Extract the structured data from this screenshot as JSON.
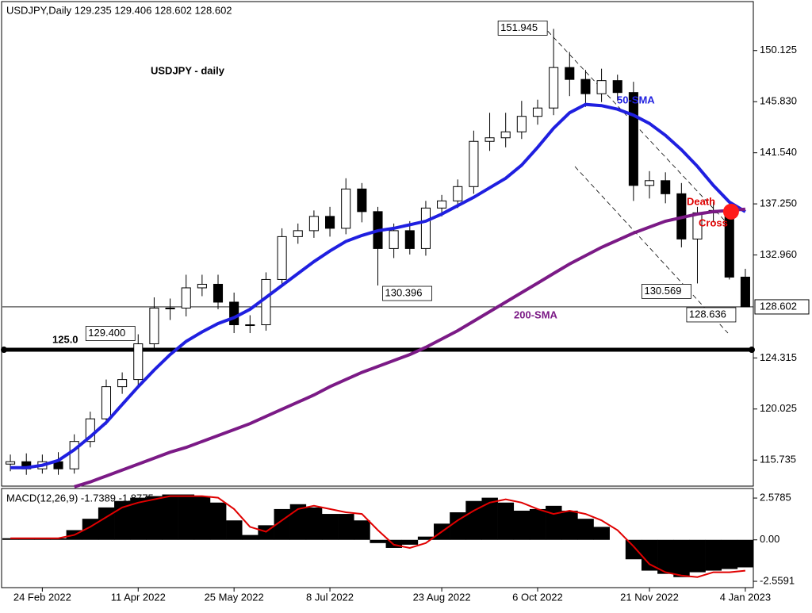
{
  "chart_data": [
    {
      "type": "candlestick",
      "header": "USDJPY,Daily  129.235 129.406 128.602 128.602",
      "title": "USDJPY - daily",
      "categories": [
        null,
        null,
        "24 Feb 2022",
        null,
        null,
        null,
        null,
        null,
        "11 Apr 2022",
        null,
        null,
        null,
        null,
        null,
        "25 May 2022",
        null,
        null,
        null,
        null,
        null,
        "8 Jul 2022",
        null,
        null,
        null,
        null,
        null,
        null,
        "23 Aug 2022",
        null,
        null,
        null,
        null,
        null,
        "6 Oct 2022",
        null,
        null,
        null,
        null,
        null,
        null,
        "21 Nov 2022",
        null,
        null,
        null,
        null,
        null,
        "4 Jan 2023"
      ],
      "open": [
        115.4,
        115.6,
        115.0,
        115.6,
        115.0,
        117.3,
        119.2,
        121.9,
        122.5,
        125.5,
        128.5,
        128.5,
        130.2,
        130.5,
        129.0,
        127.1,
        127.1,
        130.9,
        134.5,
        135.0,
        136.2,
        135.2,
        138.5,
        136.6,
        133.5,
        135.0,
        133.5,
        136.9,
        137.5,
        138.7,
        142.5,
        142.8,
        143.3,
        144.6,
        145.3,
        148.7,
        147.7,
        146.5,
        147.6,
        146.6,
        138.8,
        139.2,
        138.1,
        134.3,
        136.5,
        136.7,
        131.1
      ],
      "high": [
        116.2,
        116.3,
        116.2,
        116.4,
        117.9,
        119.8,
        122.5,
        123.1,
        126.3,
        129.4,
        129.3,
        131.3,
        131.3,
        131.3,
        129.8,
        127.9,
        131.5,
        135.2,
        135.6,
        136.7,
        137.0,
        139.4,
        139.0,
        137.0,
        135.6,
        135.8,
        137.5,
        138.0,
        139.3,
        143.4,
        144.9,
        144.9,
        145.9,
        146.0,
        151.945,
        150.0,
        148.5,
        148.6,
        148.1,
        147.5,
        140.0,
        139.9,
        139.0,
        137.0,
        137.4,
        137.4,
        131.8
      ],
      "low": [
        114.8,
        114.5,
        114.6,
        114.5,
        114.6,
        116.8,
        118.7,
        121.3,
        121.8,
        124.9,
        127.5,
        127.8,
        129.5,
        128.4,
        126.4,
        126.4,
        126.6,
        130.3,
        133.9,
        134.4,
        134.5,
        134.7,
        135.7,
        130.396,
        132.7,
        133.0,
        132.9,
        136.2,
        136.9,
        138.1,
        141.7,
        142.0,
        142.7,
        143.9,
        144.7,
        146.3,
        145.4,
        145.8,
        145.9,
        137.5,
        137.7,
        137.3,
        133.6,
        130.569,
        135.7,
        130.9,
        128.602
      ],
      "close": [
        115.6,
        115.0,
        115.6,
        115.0,
        117.3,
        119.2,
        121.9,
        122.5,
        125.5,
        128.5,
        128.5,
        130.2,
        130.5,
        129.0,
        127.1,
        127.1,
        130.9,
        134.5,
        135.0,
        136.2,
        135.2,
        138.5,
        136.6,
        133.5,
        135.0,
        133.5,
        136.9,
        137.5,
        138.7,
        142.5,
        142.8,
        143.3,
        144.6,
        145.3,
        148.7,
        147.7,
        146.5,
        147.6,
        146.6,
        138.8,
        139.2,
        138.1,
        134.3,
        136.5,
        136.7,
        131.1,
        128.602
      ],
      "series": [
        {
          "name": "50-SMA",
          "color": "#1f1fe0",
          "values": [
            115.1,
            115.1,
            115.3,
            115.7,
            116.6,
            117.7,
            118.9,
            120.4,
            121.9,
            123.3,
            124.6,
            125.7,
            126.5,
            127.2,
            127.7,
            128.4,
            129.4,
            130.4,
            131.4,
            132.4,
            133.3,
            134.1,
            134.6,
            135.0,
            135.2,
            135.5,
            135.8,
            136.4,
            137.1,
            137.8,
            138.6,
            139.4,
            140.5,
            142.0,
            143.6,
            144.9,
            145.6,
            145.5,
            145.2,
            144.7,
            144.0,
            143.0,
            141.8,
            140.4,
            138.8,
            137.4,
            136.6
          ]
        },
        {
          "name": "200-SMA",
          "color": "#7b1a86",
          "values": [
            null,
            null,
            null,
            null,
            113.5,
            113.9,
            114.4,
            114.9,
            115.4,
            115.9,
            116.4,
            116.8,
            117.3,
            117.8,
            118.3,
            118.8,
            119.4,
            120.0,
            120.6,
            121.2,
            121.9,
            122.5,
            123.1,
            123.6,
            124.1,
            124.6,
            125.2,
            125.9,
            126.6,
            127.4,
            128.2,
            129.0,
            129.8,
            130.6,
            131.4,
            132.2,
            132.9,
            133.6,
            134.2,
            134.8,
            135.3,
            135.8,
            136.1,
            136.4,
            136.6,
            136.7,
            136.8
          ]
        }
      ],
      "annotations": [
        "151.945",
        "129.400",
        "130.396",
        "130.569",
        "128.636",
        "Death",
        "Cross"
      ],
      "level": {
        "value": 125,
        "label": "125.0"
      },
      "last_price": 128.602,
      "ylim": [
        113.55,
        154.17
      ],
      "yticks": [
        115.735,
        120.025,
        124.315,
        {
          "value": 132.96,
          "label": "132.960"
        },
        {
          "value": 137.25,
          "label": "137.250"
        },
        {
          "value": 141.54,
          "label": "141.540"
        },
        {
          "value": 145.83,
          "label": "145.830"
        },
        150.125
      ]
    },
    {
      "type": "macd",
      "title": "MACD(12,26,9) -1.7389 -1.8775",
      "histogram": [
        0.1,
        0.1,
        0.1,
        0.1,
        0.6,
        1.3,
        2.0,
        2.4,
        2.6,
        2.7,
        2.8,
        2.8,
        2.7,
        2.3,
        1.2,
        0.3,
        0.9,
        1.9,
        2.2,
        2.0,
        1.6,
        1.6,
        1.2,
        -0.2,
        -0.5,
        -0.3,
        0.2,
        1.0,
        1.7,
        2.4,
        2.6,
        2.3,
        1.8,
        1.9,
        2.1,
        1.8,
        1.3,
        0.8,
        0.0,
        -1.2,
        -1.9,
        -2.1,
        -2.3,
        -2.0,
        -1.9,
        -1.8,
        -1.7
      ],
      "signal": [
        0.1,
        0.1,
        0.1,
        0.1,
        0.3,
        0.8,
        1.4,
        2.0,
        2.3,
        2.5,
        2.7,
        2.7,
        2.7,
        2.6,
        1.9,
        0.8,
        0.5,
        1.2,
        1.9,
        2.1,
        1.9,
        1.7,
        1.6,
        0.6,
        -0.3,
        -0.5,
        -0.2,
        0.5,
        1.2,
        1.8,
        2.3,
        2.5,
        2.3,
        1.9,
        1.6,
        1.8,
        1.6,
        1.2,
        0.6,
        -0.4,
        -1.5,
        -2.0,
        -2.2,
        -2.3,
        -2.0,
        -2.0,
        -1.9
      ],
      "histogram_color": "#000000",
      "signal_color": "#e00000",
      "ylim": [
        -2.9,
        3.12
      ],
      "yticks": [
        -2.5591,
        {
          "value": 0,
          "label": "0.00"
        },
        2.5785
      ]
    }
  ]
}
